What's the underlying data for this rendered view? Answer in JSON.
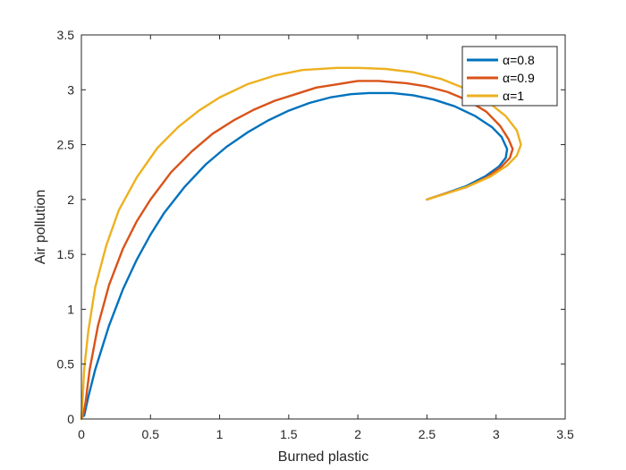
{
  "chart_data": {
    "type": "line",
    "title": "",
    "xlabel": "Burned plastic",
    "ylabel": "Air pollution",
    "xlim": [
      0,
      3.5
    ],
    "ylim": [
      0,
      3.5
    ],
    "xticks": [
      "0",
      "0.5",
      "1",
      "1.5",
      "2",
      "2.5",
      "3",
      "3.5"
    ],
    "yticks": [
      "0",
      "0.5",
      "1",
      "1.5",
      "2",
      "2.5",
      "3",
      "3.5"
    ],
    "grid": false,
    "legend_position": "top-right",
    "series": [
      {
        "name": "α=0.8",
        "color": "#0072BD",
        "points": [
          [
            0.02,
            0.03
          ],
          [
            0.05,
            0.2
          ],
          [
            0.1,
            0.45
          ],
          [
            0.2,
            0.85
          ],
          [
            0.3,
            1.18
          ],
          [
            0.4,
            1.45
          ],
          [
            0.5,
            1.68
          ],
          [
            0.6,
            1.88
          ],
          [
            0.75,
            2.12
          ],
          [
            0.9,
            2.32
          ],
          [
            1.05,
            2.48
          ],
          [
            1.2,
            2.61
          ],
          [
            1.35,
            2.72
          ],
          [
            1.5,
            2.81
          ],
          [
            1.65,
            2.88
          ],
          [
            1.8,
            2.93
          ],
          [
            1.95,
            2.96
          ],
          [
            2.08,
            2.97
          ],
          [
            2.25,
            2.97
          ],
          [
            2.4,
            2.95
          ],
          [
            2.55,
            2.91
          ],
          [
            2.7,
            2.85
          ],
          [
            2.85,
            2.76
          ],
          [
            2.97,
            2.66
          ],
          [
            3.04,
            2.57
          ],
          [
            3.08,
            2.46
          ],
          [
            3.07,
            2.38
          ],
          [
            3.02,
            2.3
          ],
          [
            2.92,
            2.21
          ],
          [
            2.78,
            2.12
          ],
          [
            2.62,
            2.05
          ],
          [
            2.5,
            2.0
          ]
        ]
      },
      {
        "name": "α=0.9",
        "color": "#D95319",
        "points": [
          [
            0.01,
            0.02
          ],
          [
            0.03,
            0.15
          ],
          [
            0.06,
            0.45
          ],
          [
            0.12,
            0.85
          ],
          [
            0.2,
            1.22
          ],
          [
            0.3,
            1.55
          ],
          [
            0.4,
            1.8
          ],
          [
            0.5,
            2.0
          ],
          [
            0.65,
            2.25
          ],
          [
            0.8,
            2.44
          ],
          [
            0.95,
            2.6
          ],
          [
            1.1,
            2.72
          ],
          [
            1.25,
            2.82
          ],
          [
            1.4,
            2.9
          ],
          [
            1.55,
            2.96
          ],
          [
            1.7,
            3.02
          ],
          [
            1.85,
            3.05
          ],
          [
            2.0,
            3.08
          ],
          [
            2.15,
            3.08
          ],
          [
            2.35,
            3.06
          ],
          [
            2.5,
            3.03
          ],
          [
            2.65,
            2.98
          ],
          [
            2.8,
            2.9
          ],
          [
            2.93,
            2.8
          ],
          [
            3.03,
            2.67
          ],
          [
            3.09,
            2.55
          ],
          [
            3.12,
            2.46
          ],
          [
            3.1,
            2.38
          ],
          [
            3.04,
            2.3
          ],
          [
            2.93,
            2.2
          ],
          [
            2.78,
            2.11
          ],
          [
            2.62,
            2.05
          ],
          [
            2.5,
            2.0
          ]
        ]
      },
      {
        "name": "α=1",
        "color": "#EDB120",
        "points": [
          [
            0.0,
            0.0
          ],
          [
            0.01,
            0.2
          ],
          [
            0.02,
            0.45
          ],
          [
            0.05,
            0.8
          ],
          [
            0.1,
            1.2
          ],
          [
            0.18,
            1.58
          ],
          [
            0.27,
            1.9
          ],
          [
            0.4,
            2.2
          ],
          [
            0.55,
            2.47
          ],
          [
            0.7,
            2.66
          ],
          [
            0.85,
            2.81
          ],
          [
            1.0,
            2.93
          ],
          [
            1.2,
            3.05
          ],
          [
            1.4,
            3.13
          ],
          [
            1.6,
            3.18
          ],
          [
            1.85,
            3.2
          ],
          [
            2.0,
            3.2
          ],
          [
            2.2,
            3.19
          ],
          [
            2.4,
            3.16
          ],
          [
            2.6,
            3.1
          ],
          [
            2.8,
            3.0
          ],
          [
            2.95,
            2.88
          ],
          [
            3.07,
            2.76
          ],
          [
            3.15,
            2.63
          ],
          [
            3.18,
            2.5
          ],
          [
            3.15,
            2.4
          ],
          [
            3.08,
            2.31
          ],
          [
            2.96,
            2.21
          ],
          [
            2.8,
            2.12
          ],
          [
            2.63,
            2.05
          ],
          [
            2.5,
            2.0
          ]
        ]
      }
    ]
  }
}
